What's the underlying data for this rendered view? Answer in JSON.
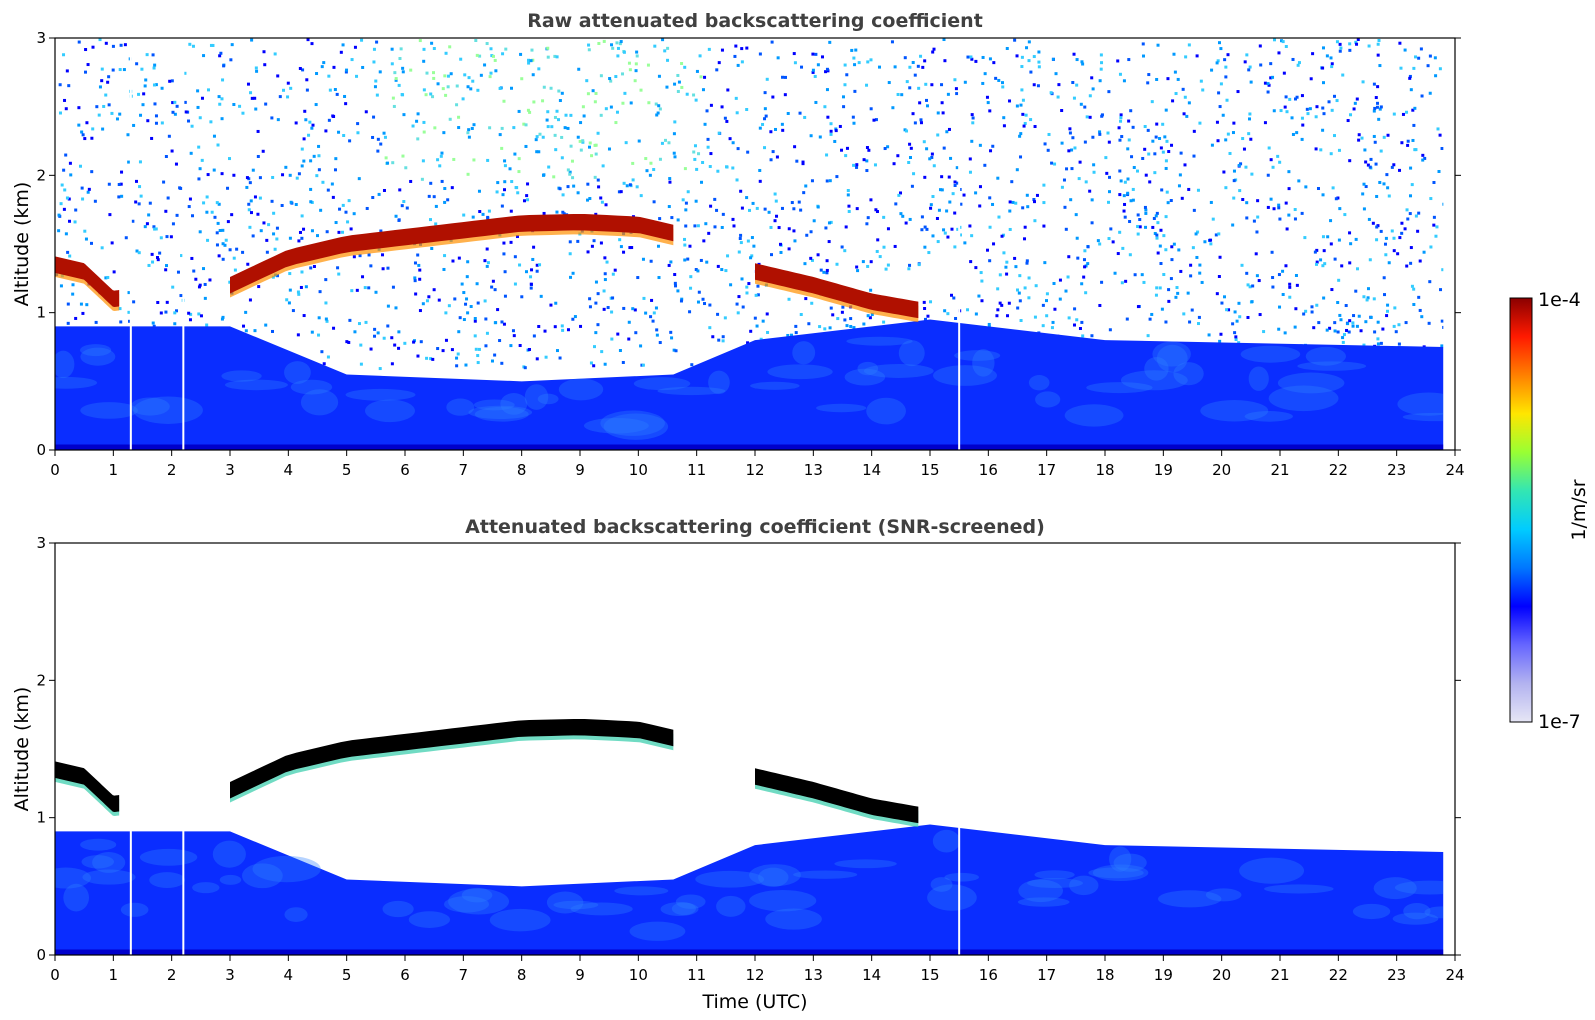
{
  "chart_data": [
    {
      "type": "heatmap",
      "title": "Raw attenuated backscattering coefficient",
      "xlabel": "",
      "ylabel": "Altitude (km)",
      "xlim": [
        0,
        24
      ],
      "ylim": [
        0,
        3
      ],
      "xticks": [
        0,
        1,
        2,
        3,
        4,
        5,
        6,
        7,
        8,
        9,
        10,
        11,
        12,
        13,
        14,
        15,
        16,
        17,
        18,
        19,
        20,
        21,
        22,
        23,
        24
      ],
      "yticks": [
        0,
        1,
        2,
        3
      ],
      "data_end_hour": 23.8,
      "missing_columns_hours": [
        1.3,
        2.2,
        15.5
      ],
      "features": {
        "cloud_layer": [
          {
            "t": 0.0,
            "alt": 1.35
          },
          {
            "t": 0.5,
            "alt": 1.3
          },
          {
            "t": 1.0,
            "alt": 1.1
          },
          {
            "t": 3.0,
            "alt": 1.2
          },
          {
            "t": 4.0,
            "alt": 1.4
          },
          {
            "t": 5.0,
            "alt": 1.5
          },
          {
            "t": 6.0,
            "alt": 1.55
          },
          {
            "t": 7.0,
            "alt": 1.6
          },
          {
            "t": 8.0,
            "alt": 1.65
          },
          {
            "t": 9.0,
            "alt": 1.66
          },
          {
            "t": 10.0,
            "alt": 1.64
          },
          {
            "t": 10.6,
            "alt": 1.58
          },
          {
            "t": 12.0,
            "alt": 1.3
          },
          {
            "t": 13.0,
            "alt": 1.2
          },
          {
            "t": 14.0,
            "alt": 1.08
          },
          {
            "t": 14.8,
            "alt": 1.02
          }
        ],
        "boundary_layer_top": [
          {
            "t": 0.0,
            "alt": 0.9
          },
          {
            "t": 3.0,
            "alt": 0.9
          },
          {
            "t": 5.0,
            "alt": 0.55
          },
          {
            "t": 8.0,
            "alt": 0.5
          },
          {
            "t": 10.6,
            "alt": 0.55
          },
          {
            "t": 12.0,
            "alt": 0.8
          },
          {
            "t": 15.0,
            "alt": 0.95
          },
          {
            "t": 18.0,
            "alt": 0.8
          },
          {
            "t": 23.8,
            "alt": 0.75
          }
        ]
      }
    },
    {
      "type": "heatmap",
      "title": "Attenuated backscattering coefficient (SNR-screened)",
      "xlabel": "Time (UTC)",
      "ylabel": "Altitude (km)",
      "xlim": [
        0,
        24
      ],
      "ylim": [
        0,
        3
      ],
      "xticks": [
        0,
        1,
        2,
        3,
        4,
        5,
        6,
        7,
        8,
        9,
        10,
        11,
        12,
        13,
        14,
        15,
        16,
        17,
        18,
        19,
        20,
        21,
        22,
        23,
        24
      ],
      "yticks": [
        0,
        1,
        2,
        3
      ],
      "data_end_hour": 23.8,
      "missing_columns_hours": [
        1.3,
        2.2,
        15.5
      ],
      "saturated_color": "#000000"
    }
  ],
  "colorbar": {
    "label": "1/m/sr",
    "max_label": "1e-4",
    "min_label": "1e-7",
    "scale": "log",
    "colors": [
      "#e6e6f5",
      "#b3b3f0",
      "#6666ff",
      "#0000ff",
      "#0077ff",
      "#00ccff",
      "#33e6b3",
      "#99ff33",
      "#ffe600",
      "#ff8000",
      "#ff1a00",
      "#8b0000"
    ]
  }
}
